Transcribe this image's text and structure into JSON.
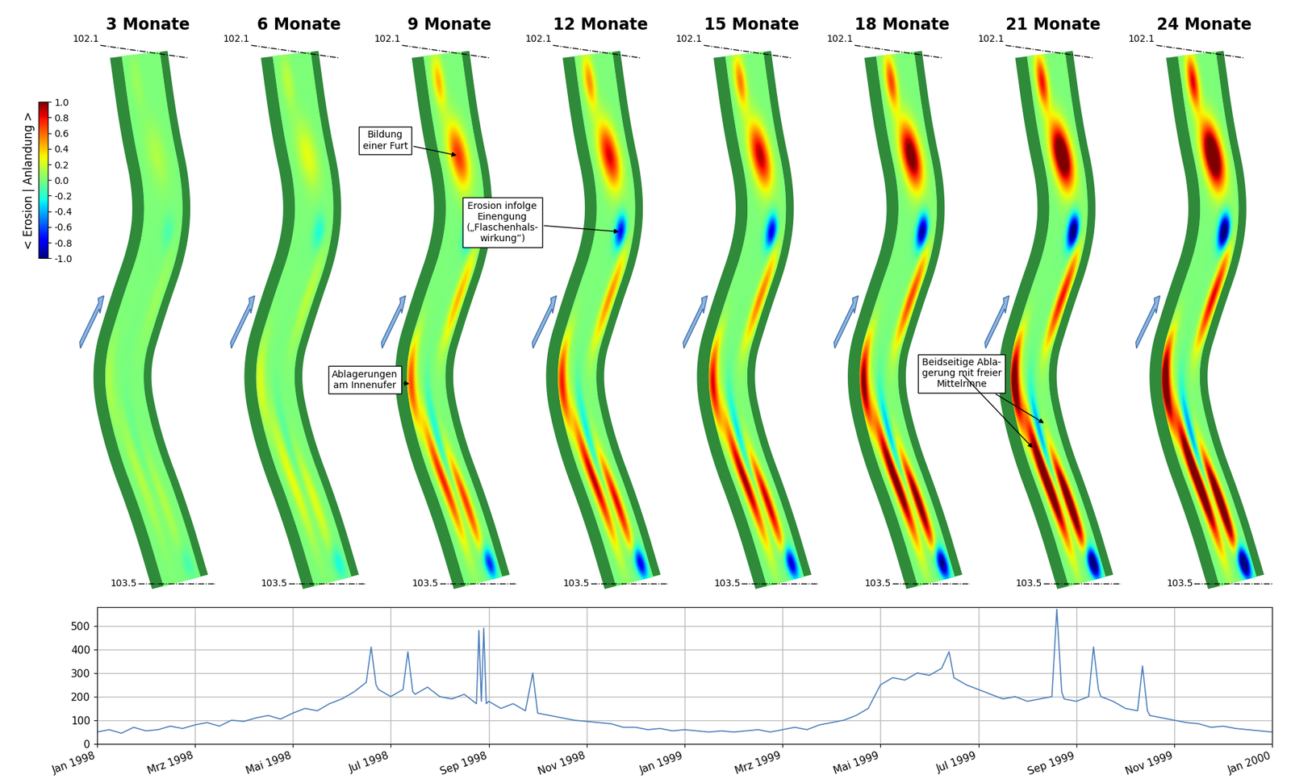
{
  "maps": {
    "panels": [
      "3 Monate",
      "6 Monate",
      "9 Monate",
      "12 Monate",
      "15 Monate",
      "18 Monate",
      "21 Monate",
      "24 Monate"
    ],
    "km_top": 102.1,
    "km_bottom": 103.5,
    "colorbar": {
      "label": "< Erosion | Anlandung >",
      "range": [
        -1,
        1
      ],
      "ticks": [
        {
          "value": 1,
          "label": "1.0"
        },
        0.8,
        0.6,
        0.4,
        0.2,
        {
          "value": 0,
          "label": "0.0"
        },
        -0.2,
        -0.4,
        -0.6,
        -0.8,
        {
          "value": -1,
          "label": "-1.0"
        }
      ]
    },
    "annotations": [
      {
        "panel": "9 Monate",
        "text": "Bildung\neiner Furt"
      },
      {
        "panel": "9 Monate",
        "text": "Ablagerungen\nam Innenufer"
      },
      {
        "panel": "12 Monate",
        "text": "Erosion infolge\nEinengung\n(„Flaschenhals-\nwirkung“)"
      },
      {
        "panel": "21 Monate",
        "text": "Beidseitige Abla-\ngerung mit freier\nMittelrinne"
      }
    ]
  },
  "chart_data": {
    "type": "line",
    "color": "#4a7ebb",
    "grid": true,
    "x": [
      0,
      0.25,
      0.5,
      0.75,
      1,
      1.25,
      1.5,
      1.75,
      2,
      2.25,
      2.5,
      2.75,
      3,
      3.25,
      3.5,
      3.75,
      4,
      4.25,
      4.5,
      4.75,
      5,
      5.25,
      5.5,
      5.6,
      5.7,
      5.75,
      6,
      6.25,
      6.35,
      6.45,
      6.5,
      6.75,
      7,
      7.25,
      7.5,
      7.75,
      7.8,
      7.85,
      7.9,
      7.95,
      8,
      8.25,
      8.5,
      8.75,
      8.9,
      9,
      9.25,
      9.5,
      9.75,
      10,
      10.25,
      10.5,
      10.75,
      11,
      11.25,
      11.5,
      11.75,
      12,
      12.25,
      12.5,
      12.75,
      13,
      13.25,
      13.5,
      13.75,
      14,
      14.25,
      14.5,
      14.75,
      15,
      15.25,
      15.5,
      15.75,
      16,
      16.25,
      16.5,
      16.75,
      17,
      17.25,
      17.4,
      17.5,
      17.75,
      18,
      18.25,
      18.5,
      18.75,
      19,
      19.25,
      19.5,
      19.6,
      19.7,
      19.75,
      20,
      20.25,
      20.35,
      20.45,
      20.5,
      20.75,
      21,
      21.25,
      21.35,
      21.45,
      21.5,
      21.75,
      22,
      22.25,
      22.5,
      22.75,
      23,
      23.25,
      23.5,
      23.75,
      24
    ],
    "values": [
      50,
      60,
      45,
      70,
      55,
      60,
      75,
      65,
      80,
      90,
      75,
      100,
      95,
      110,
      120,
      105,
      130,
      150,
      140,
      170,
      190,
      220,
      260,
      410,
      250,
      230,
      200,
      230,
      390,
      220,
      210,
      240,
      200,
      190,
      210,
      170,
      480,
      180,
      490,
      170,
      180,
      150,
      170,
      140,
      300,
      130,
      120,
      110,
      100,
      95,
      90,
      85,
      70,
      70,
      60,
      65,
      55,
      60,
      55,
      50,
      55,
      50,
      55,
      60,
      50,
      60,
      70,
      60,
      80,
      90,
      100,
      120,
      150,
      250,
      280,
      270,
      300,
      290,
      320,
      390,
      280,
      250,
      230,
      210,
      190,
      200,
      180,
      190,
      200,
      570,
      220,
      190,
      180,
      200,
      410,
      230,
      200,
      180,
      150,
      140,
      330,
      140,
      120,
      110,
      100,
      90,
      85,
      70,
      75,
      65,
      60,
      55,
      50
    ],
    "xlim": [
      0,
      24
    ],
    "ylim": [
      0,
      580
    ],
    "xticks": [
      {
        "value": 0,
        "label": "Jan 1998"
      },
      {
        "value": 2,
        "label": "Mrz 1998"
      },
      {
        "value": 4,
        "label": "Mai 1998"
      },
      {
        "value": 6,
        "label": "Jul 1998"
      },
      {
        "value": 8,
        "label": "Sep 1998"
      },
      {
        "value": 10,
        "label": "Nov 1998"
      },
      {
        "value": 12,
        "label": "Jan 1999"
      },
      {
        "value": 14,
        "label": "Mrz 1999"
      },
      {
        "value": 16,
        "label": "Mai 1999"
      },
      {
        "value": 18,
        "label": "Jul 1999"
      },
      {
        "value": 20,
        "label": "Sep 1999"
      },
      {
        "value": 22,
        "label": "Nov 1999"
      },
      {
        "value": 24,
        "label": "Jan 2000"
      }
    ],
    "yticks": [
      0,
      100,
      200,
      300,
      400,
      500
    ]
  }
}
